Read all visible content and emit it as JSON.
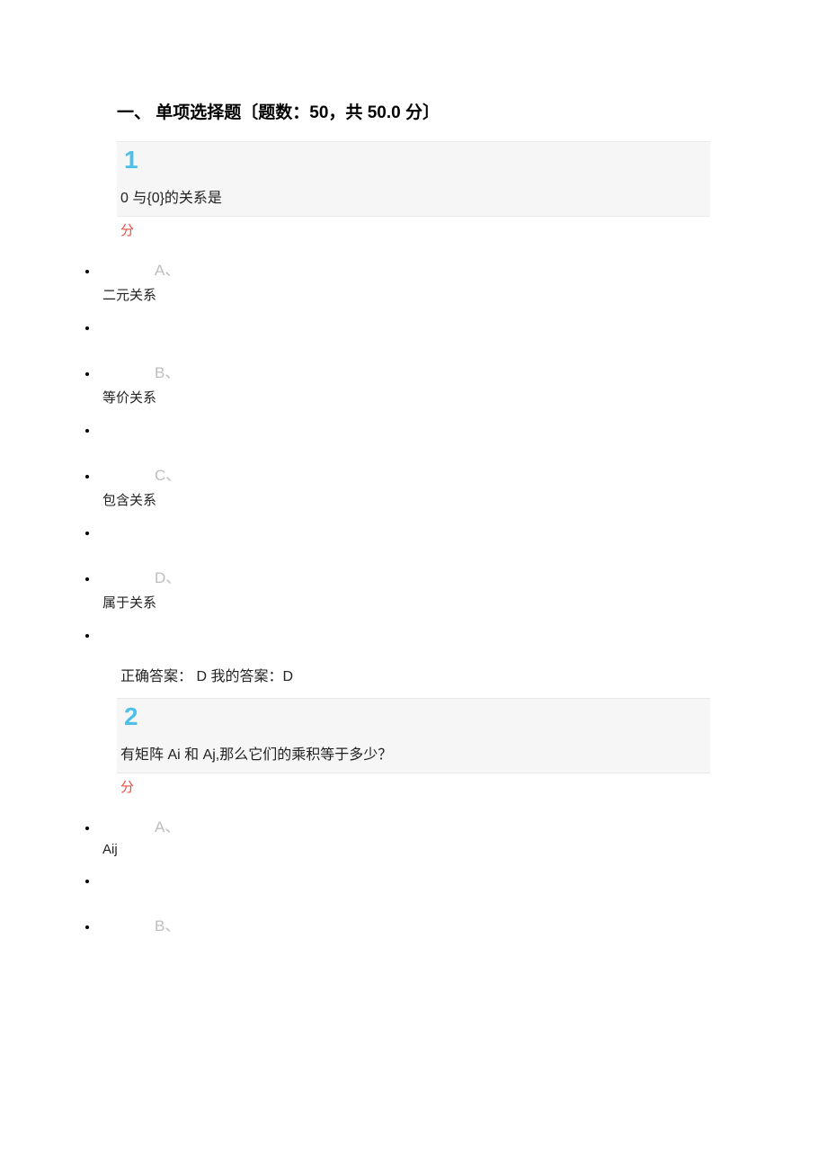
{
  "section": {
    "title": "一、 单项选择题〔题数：50，共 50.0 分〕"
  },
  "questions": [
    {
      "number": "1",
      "text": "0 与{0}的关系是",
      "score_label": "分",
      "options": [
        {
          "letter": "A、",
          "text": "二元关系"
        },
        {
          "letter": "B、",
          "text": "等价关系"
        },
        {
          "letter": "C、",
          "text": "包含关系"
        },
        {
          "letter": "D、",
          "text": "属于关系"
        }
      ],
      "answer": "正确答案： D 我的答案：D"
    },
    {
      "number": "2",
      "text": "有矩阵 Ai 和 Aj,那么它们的乘积等于多少？",
      "score_label": "分",
      "options": [
        {
          "letter": "A、",
          "text": "Aij"
        },
        {
          "letter": "B、",
          "text": ""
        }
      ],
      "answer": ""
    }
  ]
}
